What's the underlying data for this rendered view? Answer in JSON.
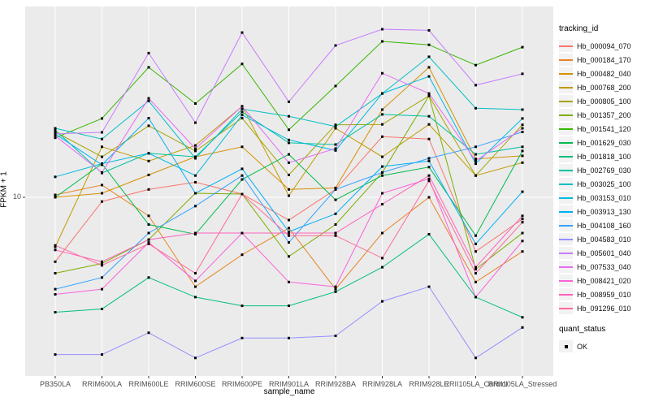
{
  "chart_data": {
    "type": "line",
    "title": "",
    "xlabel": "sample_name",
    "ylabel": "FPKM + 1",
    "y_scale": "log10",
    "y_ticks": [
      {
        "value": 10,
        "label": "10"
      }
    ],
    "ylim_approx": [
      1.2,
      110
    ],
    "grid": true,
    "panel_bg": "#EBEBEB",
    "grid_color": "#FFFFFF",
    "point_color": "#000000",
    "point_shape": "square",
    "legend_position": "right",
    "categories": [
      "PB350LA",
      "RRIM600LA",
      "RRIM600LE",
      "RRIM600SE",
      "RRIM600PE",
      "RRIM901LA",
      "RRIM928BA",
      "RRIM928LA",
      "RRIM928LE",
      "RRII105LA_Control",
      "RRII105LA_Stressed"
    ],
    "series": [
      {
        "name": "Hb_000094_070",
        "color": "#F8766D",
        "values": [
          4.6,
          9.5,
          11.0,
          12.0,
          10.4,
          7.6,
          11.0,
          20.8,
          20.2,
          5.2,
          7.7
        ]
      },
      {
        "name": "Hb_000184_170",
        "color": "#E88526",
        "values": [
          10.3,
          11.6,
          8.0,
          3.4,
          5.0,
          6.9,
          3.3,
          6.5,
          10.0,
          3.6,
          5.2
        ]
      },
      {
        "name": "Hb_000482_040",
        "color": "#D89000",
        "values": [
          10.0,
          10.5,
          13.1,
          16.3,
          18.4,
          11.0,
          11.2,
          28.8,
          48.0,
          15.9,
          16.5
        ]
      },
      {
        "name": "Hb_000768_200",
        "color": "#C09B00",
        "values": [
          5.5,
          18.4,
          15.5,
          18.7,
          30.0,
          10.2,
          23.0,
          16.3,
          24.1,
          13.0,
          15.2
        ]
      },
      {
        "name": "Hb_000805_100",
        "color": "#A3A500",
        "values": [
          22.0,
          16.3,
          23.7,
          17.5,
          26.0,
          13.1,
          24.0,
          24.1,
          34.0,
          13.0,
          24.0
        ]
      },
      {
        "name": "Hb_001357_200",
        "color": "#7CAE00",
        "values": [
          4.0,
          4.5,
          6.0,
          10.5,
          10.4,
          4.9,
          7.2,
          13.5,
          34.0,
          4.2,
          6.5
        ]
      },
      {
        "name": "Hb_001541_120",
        "color": "#39B600",
        "values": [
          20.5,
          25.9,
          48.0,
          31.0,
          50.0,
          22.6,
          38.3,
          65.6,
          63.0,
          49.3,
          61.2
        ]
      },
      {
        "name": "Hb_001629_030",
        "color": "#00BB4E",
        "values": [
          10.0,
          15.0,
          7.2,
          6.4,
          12.4,
          16.8,
          9.7,
          13.0,
          14.4,
          6.3,
          17.5
        ]
      },
      {
        "name": "Hb_001818_100",
        "color": "#00BF7D",
        "values": [
          2.5,
          2.6,
          3.8,
          3.0,
          2.7,
          2.7,
          3.2,
          4.3,
          6.4,
          3.0,
          2.35
        ]
      },
      {
        "name": "Hb_002769_030",
        "color": "#00C1A3",
        "values": [
          22.5,
          13.4,
          17.0,
          16.3,
          28.0,
          19.3,
          18.9,
          27.2,
          26.6,
          16.8,
          18.4
        ]
      },
      {
        "name": "Hb_003025_100",
        "color": "#00BFC4",
        "values": [
          23.0,
          20.2,
          32.0,
          16.0,
          29.0,
          26.6,
          23.5,
          35.0,
          54.5,
          29.3,
          28.8
        ]
      },
      {
        "name": "Hb_003153_010",
        "color": "#00BAE0",
        "values": [
          12.8,
          15.0,
          17.0,
          13.0,
          27.0,
          20.0,
          17.6,
          35.0,
          43.0,
          15.0,
          25.9
        ]
      },
      {
        "name": "Hb_003913_130",
        "color": "#00B0F6",
        "values": [
          21.5,
          14.8,
          26.0,
          10.5,
          14.1,
          6.6,
          8.2,
          14.5,
          15.5,
          5.7,
          10.7
        ]
      },
      {
        "name": "Hb_004108_160",
        "color": "#35A2FF",
        "values": [
          3.3,
          3.8,
          6.5,
          9.0,
          13.0,
          5.8,
          11.0,
          13.5,
          16.0,
          18.4,
          22.0
        ]
      },
      {
        "name": "Hb_004583_010",
        "color": "#9590FF",
        "values": [
          1.5,
          1.5,
          1.95,
          1.44,
          1.83,
          1.83,
          1.88,
          2.85,
          3.4,
          1.44,
          2.08
        ]
      },
      {
        "name": "Hb_005601_040",
        "color": "#C77CFF",
        "values": [
          21.5,
          21.9,
          57.0,
          24.6,
          73.0,
          31.7,
          62.5,
          76.0,
          75.0,
          38.7,
          44.4
        ]
      },
      {
        "name": "Hb_007533_040",
        "color": "#E76BF3",
        "values": [
          21.0,
          13.5,
          33.0,
          18.0,
          30.0,
          15.2,
          18.0,
          44.7,
          35.0,
          15.5,
          23.0
        ]
      },
      {
        "name": "Hb_008421_020",
        "color": "#FA62DB",
        "values": [
          3.1,
          3.3,
          5.8,
          3.65,
          6.5,
          3.6,
          3.4,
          10.5,
          12.5,
          3.0,
          5.9
        ]
      },
      {
        "name": "Hb_008959_010",
        "color": "#FF62BC",
        "values": [
          5.3,
          4.6,
          6.0,
          6.5,
          6.5,
          6.5,
          6.5,
          9.2,
          13.0,
          4.3,
          8.0
        ]
      },
      {
        "name": "Hb_091296_010",
        "color": "#FF6A98",
        "values": [
          5.6,
          4.4,
          5.7,
          4.0,
          10.4,
          6.3,
          6.3,
          4.8,
          12.2,
          4.0,
          7.4
        ]
      }
    ],
    "legend": {
      "tracking_title": "tracking_id",
      "quant_title": "quant_status",
      "quant_items": [
        {
          "label": "OK",
          "marker": "black-square"
        }
      ]
    }
  }
}
